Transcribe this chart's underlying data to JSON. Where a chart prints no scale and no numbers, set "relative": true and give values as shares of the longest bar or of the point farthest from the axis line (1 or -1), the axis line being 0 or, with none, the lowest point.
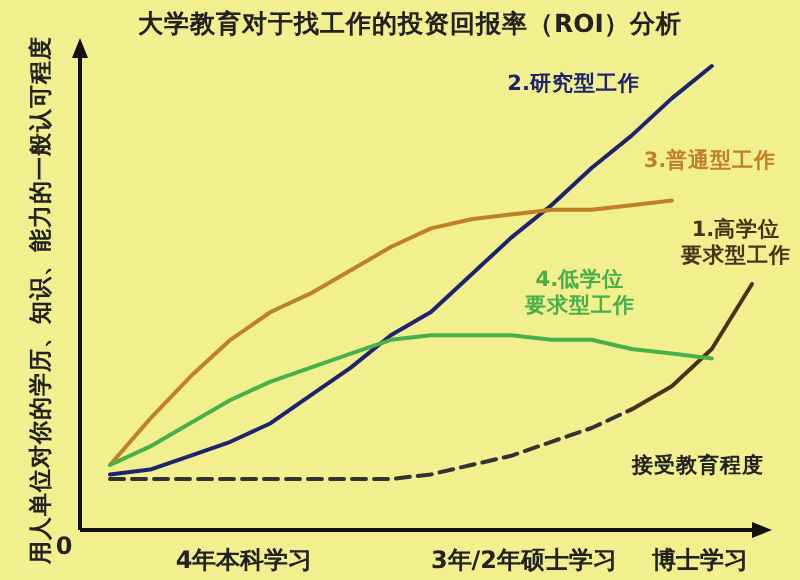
{
  "chart_data": {
    "type": "line",
    "relative": true,
    "title": "大学教育对于找工作的投资回报率（ROI）分析",
    "ylabel": "用人单位对你的学历、知识、能力的一般认可程度",
    "xlabel": "接受教育程度",
    "categories": [
      null,
      null,
      null,
      null,
      null,
      null,
      null,
      null,
      null,
      null,
      null,
      null,
      null,
      null,
      null,
      null,
      null
    ],
    "annotations": [
      "0",
      "4年本科学习",
      "3年/2年硕士学习",
      "博士学习"
    ],
    "series": [
      {
        "color": "#333333",
        "line_style": "dashed",
        "values": [
          0.11,
          0.11,
          0.11,
          0.11,
          0.11,
          0.11,
          0.11,
          0.11,
          0.12,
          0.14,
          0.16,
          0.19,
          0.22,
          0.26,
          null,
          null,
          null
        ]
      },
      {
        "name": "1.高学位要求型工作",
        "color": "#4a3418",
        "values": [
          null,
          null,
          null,
          null,
          null,
          null,
          null,
          null,
          null,
          null,
          null,
          null,
          null,
          0.26,
          0.31,
          0.39,
          0.53
        ]
      },
      {
        "name": "2.研究型工作",
        "color": "#1c2470",
        "values": [
          0.12,
          0.13,
          0.16,
          0.19,
          0.23,
          0.29,
          0.35,
          0.42,
          0.47,
          0.55,
          0.63,
          0.7,
          0.78,
          0.85,
          0.93,
          1,
          null
        ]
      },
      {
        "name": "3.普通型工作",
        "color": "#c0802a",
        "values": [
          0.14,
          0.24,
          0.33,
          0.41,
          0.47,
          0.51,
          0.56,
          0.61,
          0.65,
          0.67,
          0.68,
          0.69,
          0.69,
          0.7,
          0.71,
          null,
          null
        ]
      },
      {
        "name": "4.低学位要求型工作",
        "color": "#48b048",
        "values": [
          0.14,
          0.18,
          0.23,
          0.28,
          0.32,
          0.35,
          0.38,
          0.41,
          0.42,
          0.42,
          0.42,
          0.41,
          0.41,
          0.39,
          0.38,
          0.37,
          null
        ]
      }
    ]
  }
}
